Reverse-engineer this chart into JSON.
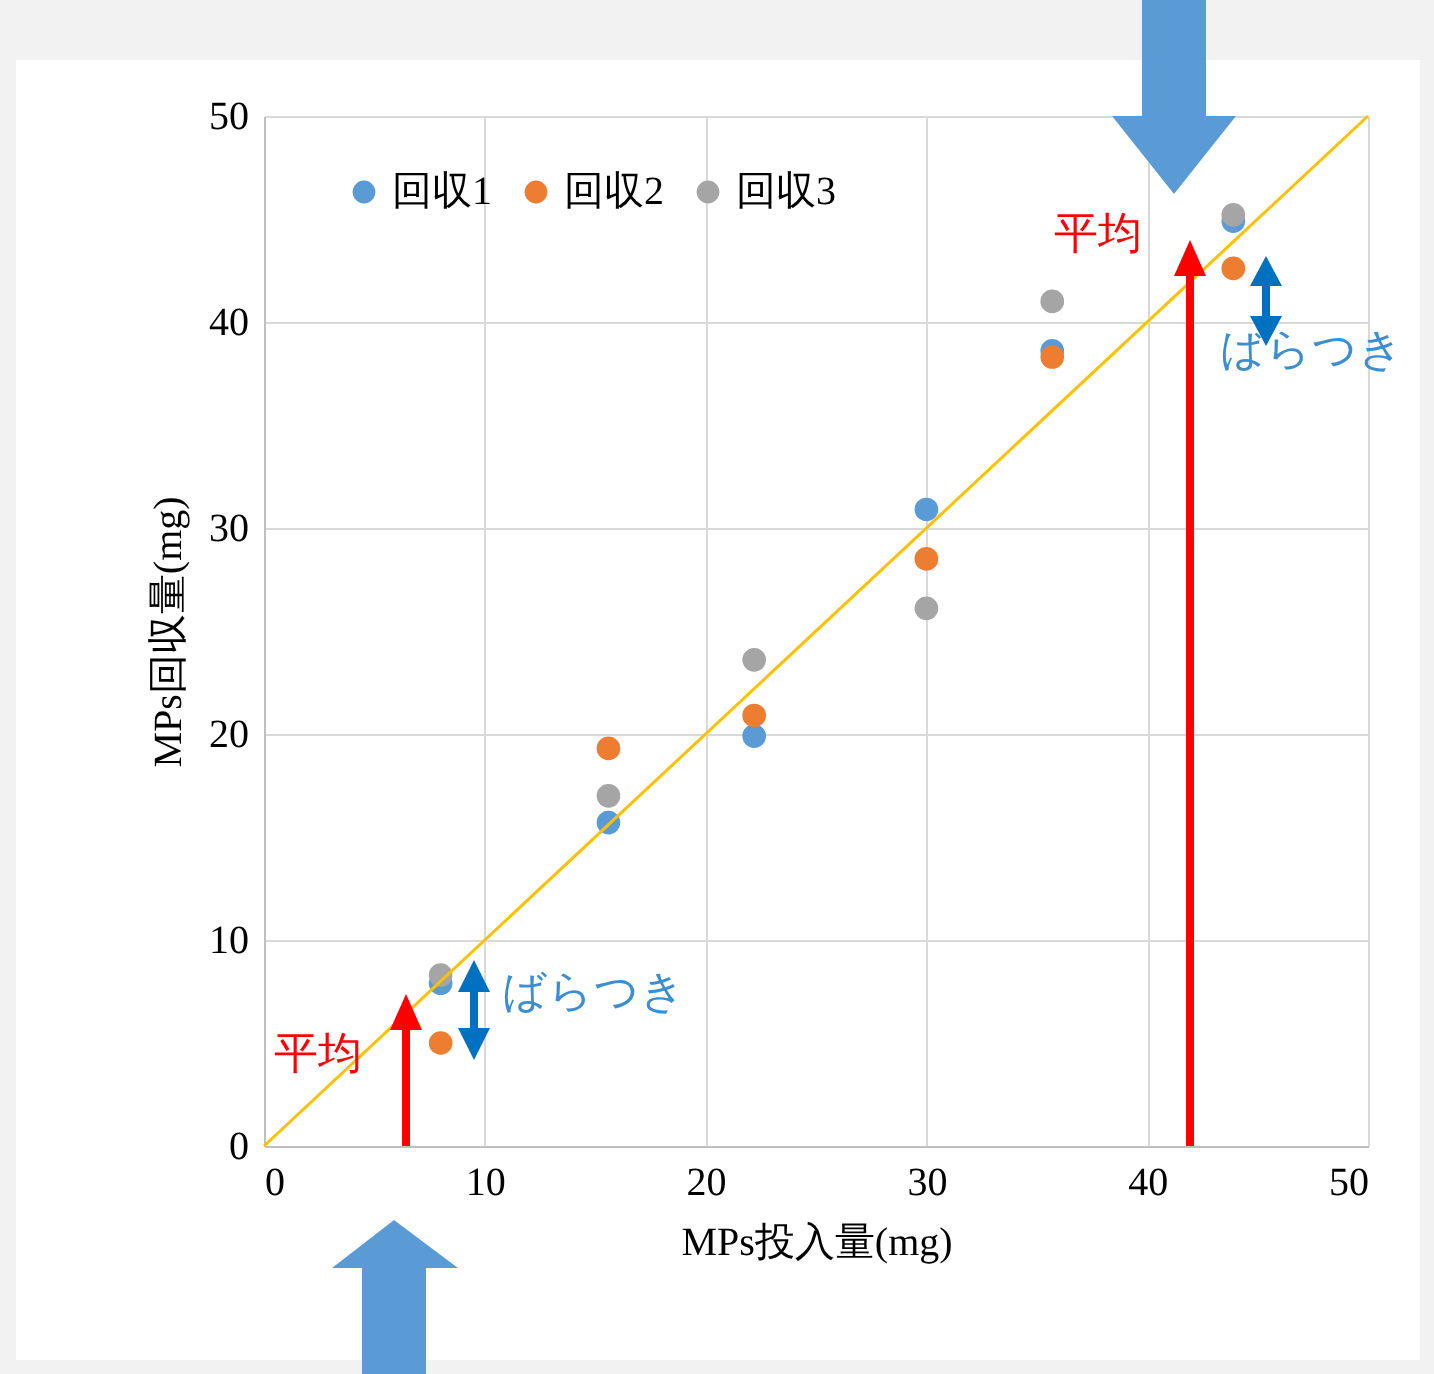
{
  "chart_data": {
    "type": "scatter",
    "xlabel": "MPs投入量(mg)",
    "ylabel": "MPs回収量(mg)",
    "x": [
      8,
      15.6,
      22.2,
      30,
      35.7,
      43.9
    ],
    "series": [
      {
        "name": "回収1",
        "color": "#5b9bd5",
        "values": [
          7.9,
          15.7,
          19.9,
          30.9,
          38.6,
          44.9
        ]
      },
      {
        "name": "回収2",
        "color": "#ed7d31",
        "values": [
          5.0,
          19.3,
          20.9,
          28.5,
          38.3,
          42.6
        ]
      },
      {
        "name": "回収3",
        "color": "#a5a5a5",
        "values": [
          8.3,
          17.0,
          23.6,
          26.1,
          41.0,
          45.2
        ]
      },
      {
        "type": "line",
        "marker": "none",
        "color": "#ffc000",
        "x": [
          0,
          50
        ],
        "values": [
          0,
          50
        ]
      }
    ],
    "xlim": [
      0,
      50
    ],
    "ylim": [
      0,
      50
    ],
    "xticks": [
      0,
      10,
      20,
      30,
      40,
      50
    ],
    "yticks": [
      0,
      10,
      20,
      30,
      40,
      50
    ],
    "annotations": [
      "平均",
      "ばらつき",
      "平均",
      "ばらつき"
    ],
    "grid": true,
    "legend": "top left",
    "marker": "circle"
  }
}
